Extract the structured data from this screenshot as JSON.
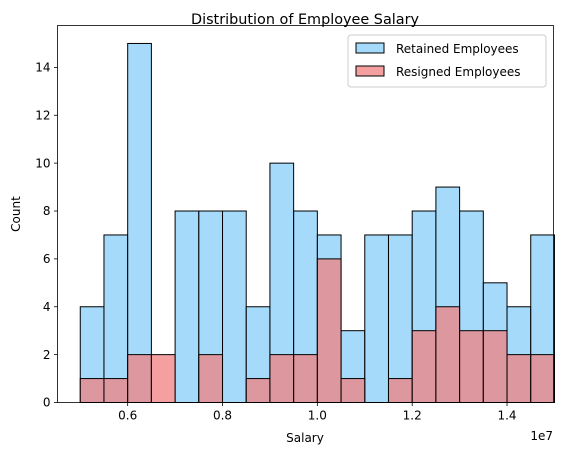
{
  "chart_data": {
    "type": "histogram",
    "title": "Distribution of Employee Salary",
    "xlabel": "Salary",
    "ylabel": "Count",
    "x_offset_label": "1e7",
    "xlim": [
      4.52,
      14.98
    ],
    "ylim": [
      0,
      15.75
    ],
    "x_ticks": [
      6,
      8,
      10,
      12,
      14
    ],
    "x_tick_labels": [
      "0.6",
      "0.8",
      "1.0",
      "1.2",
      "1.4"
    ],
    "y_ticks": [
      0,
      2,
      4,
      6,
      8,
      10,
      12,
      14
    ],
    "y_tick_labels": [
      "0",
      "2",
      "4",
      "6",
      "8",
      "10",
      "12",
      "14"
    ],
    "legend_position": "top-right",
    "series": [
      {
        "name": "Retained Employees",
        "color": "#87cefa",
        "alpha": 0.75,
        "bins": [
          [
            5.0,
            5.5,
            4
          ],
          [
            5.5,
            6.0,
            7
          ],
          [
            6.0,
            6.5,
            15
          ],
          [
            7.0,
            7.5,
            8
          ],
          [
            7.5,
            8.0,
            8
          ],
          [
            8.0,
            8.5,
            8
          ],
          [
            8.5,
            9.0,
            4
          ],
          [
            9.0,
            9.5,
            10
          ],
          [
            9.5,
            10.0,
            8
          ],
          [
            10.0,
            10.5,
            7
          ],
          [
            10.5,
            11.0,
            3
          ],
          [
            11.0,
            11.5,
            7
          ],
          [
            11.5,
            12.0,
            7
          ],
          [
            12.0,
            12.5,
            8
          ],
          [
            12.5,
            13.0,
            9
          ],
          [
            13.0,
            13.5,
            8
          ],
          [
            13.5,
            14.0,
            5
          ],
          [
            14.0,
            14.5,
            4
          ],
          [
            14.5,
            15.0,
            7
          ]
        ]
      },
      {
        "name": "Resigned Employees",
        "color": "#f08080",
        "alpha": 0.75,
        "bins": [
          [
            5.0,
            5.5,
            1
          ],
          [
            5.5,
            6.0,
            1
          ],
          [
            6.0,
            6.5,
            2
          ],
          [
            6.5,
            7.0,
            2
          ],
          [
            7.5,
            8.0,
            2
          ],
          [
            8.5,
            9.0,
            1
          ],
          [
            9.0,
            9.5,
            2
          ],
          [
            9.5,
            10.0,
            2
          ],
          [
            10.0,
            10.5,
            6
          ],
          [
            10.5,
            11.0,
            1
          ],
          [
            11.5,
            12.0,
            1
          ],
          [
            12.0,
            12.5,
            3
          ],
          [
            12.5,
            13.0,
            4
          ],
          [
            13.0,
            13.5,
            3
          ],
          [
            13.5,
            14.0,
            3
          ],
          [
            14.0,
            14.5,
            2
          ],
          [
            14.5,
            15.0,
            2
          ]
        ]
      }
    ]
  }
}
